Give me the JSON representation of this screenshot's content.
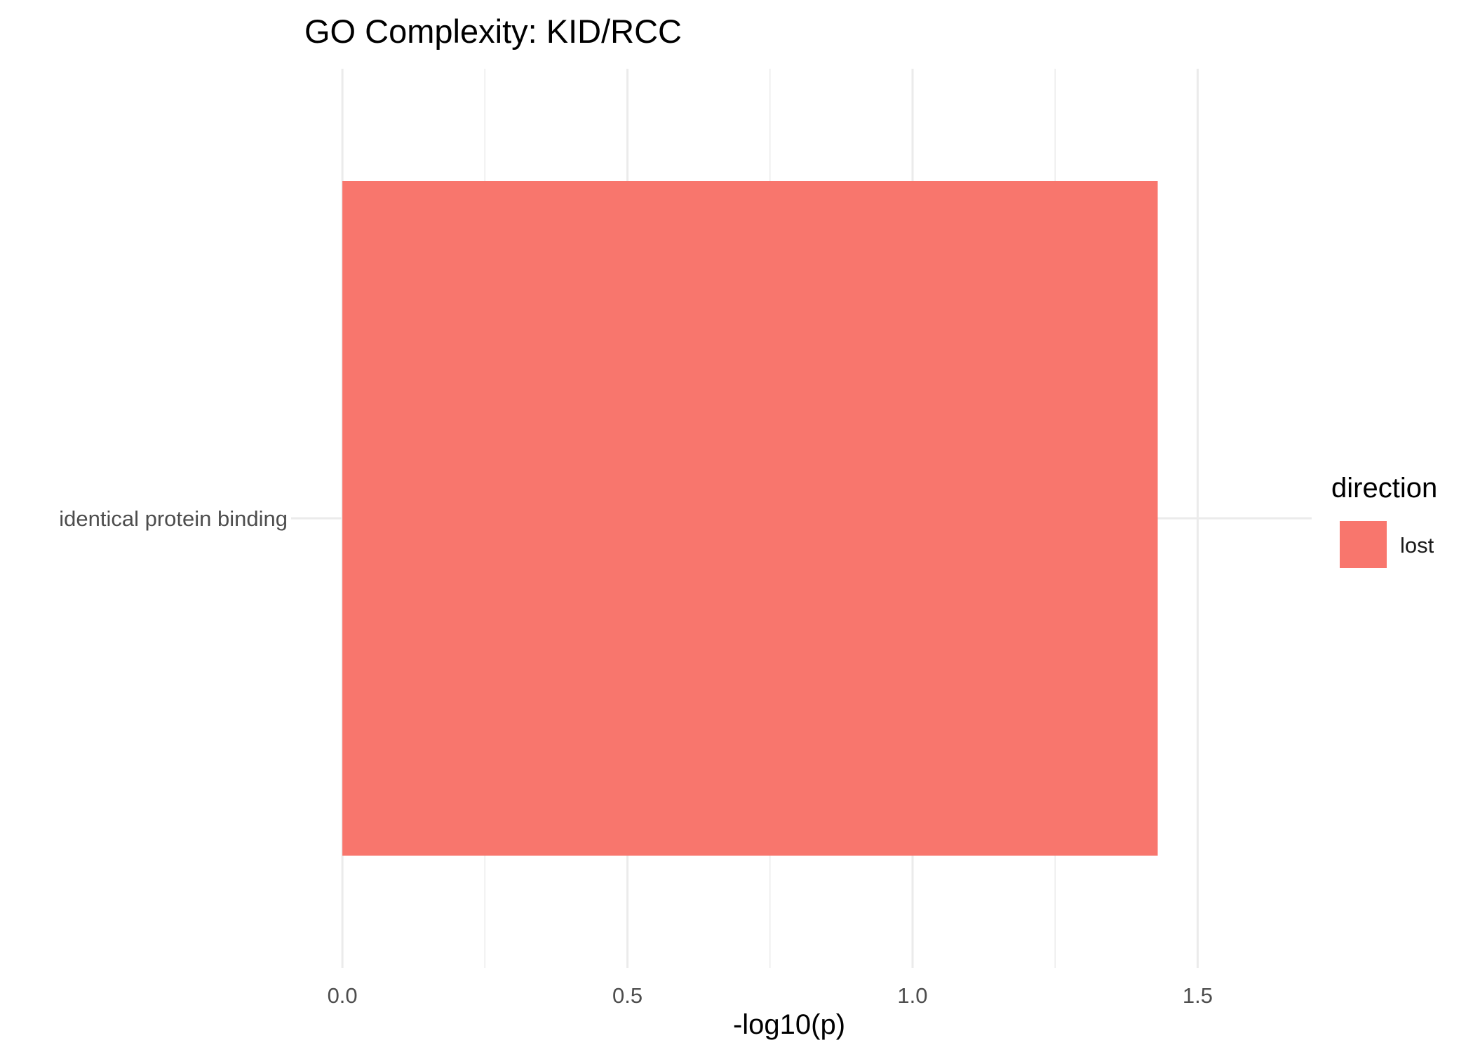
{
  "chart_data": {
    "type": "bar",
    "orientation": "horizontal",
    "title": "GO Complexity: KID/RCC",
    "xlabel": "-log10(p)",
    "ylabel": "",
    "categories": [
      "identical protein binding"
    ],
    "series": [
      {
        "name": "lost",
        "values": [
          1.43
        ],
        "color": "#F8766D"
      }
    ],
    "xlim": [
      -0.0715,
      1.7
    ],
    "x_ticks": [
      0.0,
      0.5,
      1.0,
      1.5
    ],
    "x_tick_labels": [
      "0.0",
      "0.5",
      "1.0",
      "1.5"
    ],
    "grid": true,
    "legend": {
      "title": "direction",
      "position": "right",
      "entries": [
        "lost"
      ]
    }
  }
}
